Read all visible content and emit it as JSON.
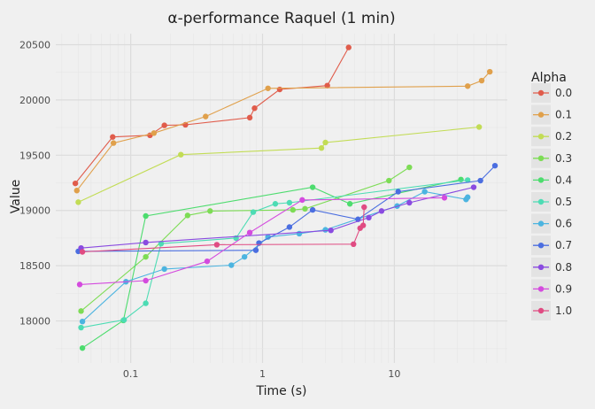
{
  "chart_data": {
    "type": "line",
    "title": "α-performance Raquel (1 min)",
    "xlabel": "Time (s)",
    "ylabel": "Value",
    "x_scale": "log",
    "xlim": [
      0.027,
      72
    ],
    "ylim": [
      17620,
      20600
    ],
    "x_ticks": [
      0.1,
      1,
      10
    ],
    "x_tick_labels": [
      "0.1",
      "1",
      "10"
    ],
    "y_ticks": [
      18000,
      18500,
      19000,
      19500,
      20000,
      20500
    ],
    "y_tick_labels": [
      "18000",
      "18500",
      "19000",
      "19500",
      "20000",
      "20500"
    ],
    "grid": true,
    "legend_title": "Alpha",
    "legend_position": "right",
    "series": [
      {
        "name": "0.0",
        "color": "#e05c4b",
        "x": [
          0.038,
          0.073,
          0.14,
          0.18,
          0.26,
          0.8,
          0.87,
          1.35,
          3.1,
          4.5
        ],
        "y": [
          19245,
          19665,
          19680,
          19770,
          19775,
          19840,
          19925,
          20095,
          20130,
          20475
        ]
      },
      {
        "name": "0.1",
        "color": "#e0a04b",
        "x": [
          0.039,
          0.074,
          0.15,
          0.37,
          1.1,
          36,
          46,
          53
        ],
        "y": [
          19180,
          19610,
          19700,
          19850,
          20105,
          20125,
          20175,
          20255
        ]
      },
      {
        "name": "0.2",
        "color": "#c2dc55",
        "x": [
          0.04,
          0.24,
          2.8,
          3.0,
          44
        ],
        "y": [
          19075,
          19505,
          19565,
          19615,
          19755
        ]
      },
      {
        "name": "0.3",
        "color": "#7ddc55",
        "x": [
          0.042,
          0.13,
          0.27,
          0.4,
          1.7,
          2.1,
          9.1,
          13
        ],
        "y": [
          18090,
          18580,
          18955,
          18995,
          19005,
          19015,
          19270,
          19390
        ]
      },
      {
        "name": "0.4",
        "color": "#4ddc6e",
        "x": [
          0.043,
          0.088,
          0.13,
          2.4,
          4.6,
          32
        ],
        "y": [
          17755,
          18005,
          18950,
          19210,
          19060,
          19280
        ]
      },
      {
        "name": "0.5",
        "color": "#4ddcb4",
        "x": [
          0.042,
          0.089,
          0.13,
          0.17,
          0.63,
          0.85,
          1.25,
          1.6,
          36
        ],
        "y": [
          17940,
          18010,
          18160,
          18700,
          18750,
          18985,
          19060,
          19070,
          19275
        ]
      },
      {
        "name": "0.6",
        "color": "#4cb4e0",
        "x": [
          0.043,
          0.092,
          0.18,
          0.58,
          0.73,
          1.1,
          1.9,
          3.0,
          10.5,
          17,
          35,
          36
        ],
        "y": [
          17995,
          18355,
          18470,
          18505,
          18580,
          18760,
          18790,
          18825,
          19040,
          19170,
          19100,
          19120
        ]
      },
      {
        "name": "0.7",
        "color": "#4b6ee0",
        "x": [
          0.04,
          0.89,
          0.94,
          1.6,
          2.4,
          5.3,
          10.7,
          45,
          58
        ],
        "y": [
          18630,
          18640,
          18705,
          18850,
          19005,
          18920,
          19170,
          19270,
          19405
        ]
      },
      {
        "name": "0.8",
        "color": "#8a4be0",
        "x": [
          0.042,
          0.13,
          3.3,
          6.4,
          8.0,
          13,
          40
        ],
        "y": [
          18660,
          18710,
          18820,
          18935,
          18995,
          19070,
          19210
        ]
      },
      {
        "name": "0.9",
        "color": "#d44bde",
        "x": [
          0.041,
          0.13,
          0.38,
          0.8,
          2.0,
          24
        ],
        "y": [
          18330,
          18365,
          18540,
          18800,
          19095,
          19115
        ]
      },
      {
        "name": "1.0",
        "color": "#e04b82",
        "x": [
          0.043,
          0.45,
          4.9,
          5.5,
          5.8,
          5.9
        ],
        "y": [
          18625,
          18690,
          18695,
          18840,
          18865,
          19030
        ]
      }
    ]
  }
}
